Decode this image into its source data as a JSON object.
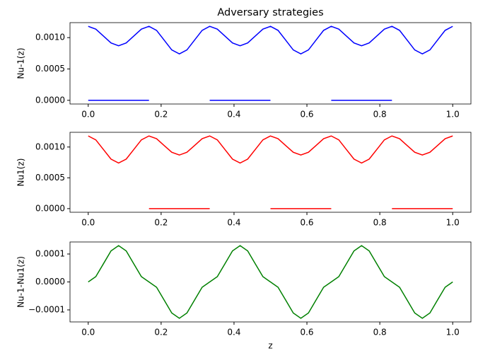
{
  "chart_data": [
    {
      "type": "line",
      "title": "Adversary strategies",
      "ylabel": "Nu-1(z)",
      "x": [
        0,
        0.0208,
        0.0417,
        0.0625,
        0.0833,
        0.1042,
        0.125,
        0.1458,
        0.1667,
        0.1875,
        0.2083,
        0.2292,
        0.25,
        0.2708,
        0.2917,
        0.3125,
        0.3333,
        0.3542,
        0.375,
        0.3958,
        0.4167,
        0.4375,
        0.4583,
        0.4792,
        0.5,
        0.5208,
        0.5417,
        0.5625,
        0.5833,
        0.6042,
        0.625,
        0.6458,
        0.6667,
        0.6875,
        0.7083,
        0.7292,
        0.75,
        0.7708,
        0.7917,
        0.8125,
        0.8333,
        0.8542,
        0.875,
        0.8958,
        0.9167,
        0.9375,
        0.9583,
        0.9792,
        1
      ],
      "series": [
        {
          "color": "#0000ff",
          "values": [
            0.00118,
            0.001135,
            0.001025,
            0.000915,
            0.00087,
            0.000915,
            0.001025,
            0.001135,
            0.00118,
            0.001116,
            0.00096,
            0.000804,
            0.00074,
            0.000804,
            0.00096,
            0.001116,
            0.00118,
            0.001135,
            0.001025,
            0.000915,
            0.00087,
            0.000915,
            0.001025,
            0.001135,
            0.00118,
            0.001116,
            0.00096,
            0.000804,
            0.00074,
            0.000804,
            0.00096,
            0.001116,
            0.00118,
            0.001135,
            0.001025,
            0.000915,
            0.00087,
            0.000915,
            0.001025,
            0.001135,
            0.00118,
            0.001116,
            0.00096,
            0.000804,
            0.00074,
            0.000804,
            0.00096,
            0.001116,
            0.00118
          ]
        },
        {
          "color": "#0000ff",
          "values": [
            0,
            0,
            0,
            0,
            0,
            0,
            0,
            0,
            0,
            null,
            null,
            null,
            null,
            null,
            null,
            null,
            0,
            0,
            0,
            0,
            0,
            0,
            0,
            0,
            0,
            null,
            null,
            null,
            null,
            null,
            null,
            null,
            0,
            0,
            0,
            0,
            0,
            0,
            0,
            0,
            0,
            null,
            null,
            null,
            null,
            null,
            null,
            null,
            null
          ]
        }
      ],
      "xlim": [
        -0.05,
        1.05
      ],
      "xticks": [
        {
          "value": 0,
          "label": "0.0"
        },
        0.2,
        0.4,
        0.6,
        0.8,
        {
          "value": 1,
          "label": "1.0"
        }
      ],
      "ylim": [
        -5.9e-05,
        0.001239
      ],
      "yticks": [
        {
          "value": 0,
          "label": "0.0000"
        },
        {
          "value": 0.0005,
          "label": "0.0005"
        },
        {
          "value": 0.001,
          "label": "0.0010"
        }
      ]
    },
    {
      "type": "line",
      "ylabel": "Nu1(z)",
      "x": [
        0,
        0.0208,
        0.0417,
        0.0625,
        0.0833,
        0.1042,
        0.125,
        0.1458,
        0.1667,
        0.1875,
        0.2083,
        0.2292,
        0.25,
        0.2708,
        0.2917,
        0.3125,
        0.3333,
        0.3542,
        0.375,
        0.3958,
        0.4167,
        0.4375,
        0.4583,
        0.4792,
        0.5,
        0.5208,
        0.5417,
        0.5625,
        0.5833,
        0.6042,
        0.625,
        0.6458,
        0.6667,
        0.6875,
        0.7083,
        0.7292,
        0.75,
        0.7708,
        0.7917,
        0.8125,
        0.8333,
        0.8542,
        0.875,
        0.8958,
        0.9167,
        0.9375,
        0.9583,
        0.9792,
        1
      ],
      "series": [
        {
          "color": "#ff0000",
          "values": [
            0.00118,
            0.001116,
            0.00096,
            0.000804,
            0.00074,
            0.000804,
            0.00096,
            0.001116,
            0.00118,
            0.001135,
            0.001025,
            0.000915,
            0.00087,
            0.000915,
            0.001025,
            0.001135,
            0.00118,
            0.001116,
            0.00096,
            0.000804,
            0.00074,
            0.000804,
            0.00096,
            0.001116,
            0.00118,
            0.001135,
            0.001025,
            0.000915,
            0.00087,
            0.000915,
            0.001025,
            0.001135,
            0.00118,
            0.001116,
            0.00096,
            0.000804,
            0.00074,
            0.000804,
            0.00096,
            0.001116,
            0.00118,
            0.001135,
            0.001025,
            0.000915,
            0.00087,
            0.000915,
            0.001025,
            0.001135,
            0.00118
          ]
        },
        {
          "color": "#ff0000",
          "values": [
            null,
            null,
            null,
            null,
            null,
            null,
            null,
            null,
            0,
            0,
            0,
            0,
            0,
            0,
            0,
            0,
            0,
            null,
            null,
            null,
            null,
            null,
            null,
            null,
            0,
            0,
            0,
            0,
            0,
            0,
            0,
            0,
            0,
            null,
            null,
            null,
            null,
            null,
            null,
            null,
            0,
            0,
            0,
            0,
            0,
            0,
            0,
            0,
            0
          ]
        }
      ],
      "xlim": [
        -0.05,
        1.05
      ],
      "xticks": [
        {
          "value": 0,
          "label": "0.0"
        },
        0.2,
        0.4,
        0.6,
        0.8,
        {
          "value": 1,
          "label": "1.0"
        }
      ],
      "ylim": [
        -5.9e-05,
        0.001239
      ],
      "yticks": [
        {
          "value": 0,
          "label": "0.0000"
        },
        {
          "value": 0.0005,
          "label": "0.0005"
        },
        {
          "value": 0.001,
          "label": "0.0010"
        }
      ]
    },
    {
      "type": "line",
      "ylabel": "Nu-1-Nu1(z)",
      "xlabel": "z",
      "x": [
        0,
        0.0208,
        0.0417,
        0.0625,
        0.0833,
        0.1042,
        0.125,
        0.1458,
        0.1667,
        0.1875,
        0.2083,
        0.2292,
        0.25,
        0.2708,
        0.2917,
        0.3125,
        0.3333,
        0.3542,
        0.375,
        0.3958,
        0.4167,
        0.4375,
        0.4583,
        0.4792,
        0.5,
        0.5208,
        0.5417,
        0.5625,
        0.5833,
        0.6042,
        0.625,
        0.6458,
        0.6667,
        0.6875,
        0.7083,
        0.7292,
        0.75,
        0.7708,
        0.7917,
        0.8125,
        0.8333,
        0.8542,
        0.875,
        0.8958,
        0.9167,
        0.9375,
        0.9583,
        0.9792,
        1
      ],
      "series": [
        {
          "color": "#008000",
          "values": [
            0,
            1.9e-05,
            6.5e-05,
            0.000111,
            0.00013,
            0.000111,
            6.5e-05,
            1.9e-05,
            0,
            -1.9e-05,
            -6.5e-05,
            -0.000111,
            -0.00013,
            -0.000111,
            -6.5e-05,
            -1.9e-05,
            0,
            1.9e-05,
            6.5e-05,
            0.000111,
            0.00013,
            0.000111,
            6.5e-05,
            1.9e-05,
            0,
            -1.9e-05,
            -6.5e-05,
            -0.000111,
            -0.00013,
            -0.000111,
            -6.5e-05,
            -1.9e-05,
            0,
            1.9e-05,
            6.5e-05,
            0.000111,
            0.00013,
            0.000111,
            6.5e-05,
            1.9e-05,
            0,
            -1.9e-05,
            -6.5e-05,
            -0.000111,
            -0.00013,
            -0.000111,
            -6.5e-05,
            -1.9e-05,
            0
          ]
        }
      ],
      "xlim": [
        -0.05,
        1.05
      ],
      "xticks": [
        {
          "value": 0,
          "label": "0.0"
        },
        0.2,
        0.4,
        0.6,
        0.8,
        {
          "value": 1,
          "label": "1.0"
        }
      ],
      "ylim": [
        -0.000143,
        0.000143
      ],
      "yticks": [
        {
          "value": -0.0001,
          "label": "−0.0001"
        },
        {
          "value": 0,
          "label": "0.0000"
        },
        0.0001
      ]
    }
  ]
}
